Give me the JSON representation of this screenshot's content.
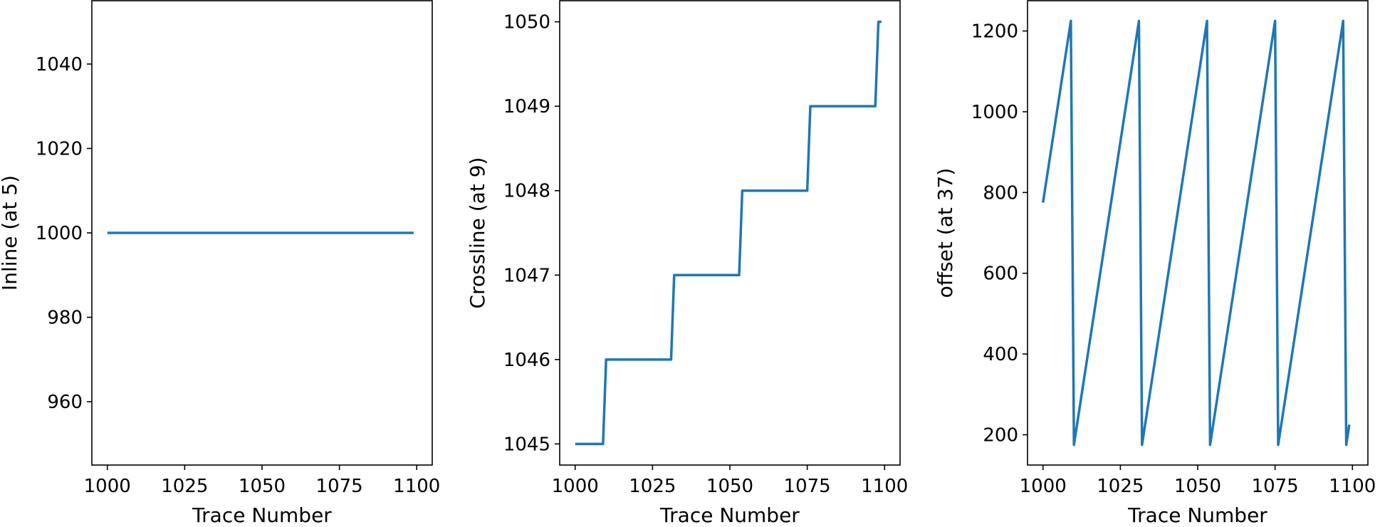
{
  "colors": {
    "series": "#1f77b4"
  },
  "chart_data": [
    {
      "type": "line",
      "xlabel": "Trace Number",
      "ylabel": "Inline (at 5)",
      "xlim": [
        995,
        1105
      ],
      "ylim": [
        945,
        1055
      ],
      "xticks": [
        1000,
        1025,
        1050,
        1075,
        1100
      ],
      "yticks": [
        960,
        980,
        1000,
        1020,
        1040
      ],
      "grid": false,
      "series": [
        {
          "x": [
            1000,
            1099
          ],
          "y": [
            1000,
            1000
          ]
        }
      ]
    },
    {
      "type": "line",
      "xlabel": "Trace Number",
      "ylabel": "Crossline (at 9)",
      "xlim": [
        995,
        1105
      ],
      "ylim": [
        1044.75,
        1050.25
      ],
      "xticks": [
        1000,
        1025,
        1050,
        1075,
        1100
      ],
      "yticks": [
        1045,
        1046,
        1047,
        1048,
        1049,
        1050
      ],
      "grid": false,
      "series": [
        {
          "x": [
            1000,
            1009,
            1010,
            1031,
            1032,
            1053,
            1054,
            1075,
            1076,
            1097,
            1098,
            1099
          ],
          "y": [
            1045,
            1045,
            1046,
            1046,
            1047,
            1047,
            1048,
            1048,
            1049,
            1049,
            1050,
            1050
          ]
        }
      ]
    },
    {
      "type": "line",
      "xlabel": "Trace Number",
      "ylabel": "offset (at 37)",
      "xlim": [
        995,
        1105
      ],
      "ylim": [
        125,
        1275
      ],
      "xticks": [
        1000,
        1025,
        1050,
        1075,
        1100
      ],
      "yticks": [
        200,
        400,
        600,
        800,
        1000,
        1200
      ],
      "grid": false,
      "series": [
        {
          "x": [
            1000,
            1009,
            1010,
            1031,
            1032,
            1053,
            1054,
            1075,
            1076,
            1097,
            1098,
            1099
          ],
          "y": [
            775,
            1225,
            175,
            1225,
            175,
            1225,
            175,
            1225,
            175,
            1225,
            175,
            225
          ]
        }
      ]
    }
  ]
}
